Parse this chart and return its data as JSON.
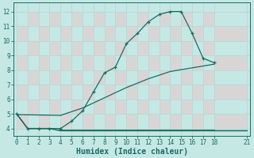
{
  "xlabel": "Humidex (Indice chaleur)",
  "bg_color": "#c5e8e5",
  "grid_color": "#b8d8d4",
  "cell_bg": "#e8c8c8",
  "line_color": "#1a6b60",
  "line1_x": [
    0,
    1,
    2,
    3,
    4,
    5,
    6,
    7,
    8,
    9,
    10,
    11,
    12,
    13,
    14,
    15,
    16,
    17,
    18
  ],
  "line1_y": [
    5.0,
    4.0,
    4.0,
    4.0,
    4.0,
    4.5,
    5.2,
    6.5,
    7.8,
    8.2,
    9.8,
    10.5,
    11.3,
    11.8,
    12.0,
    12.0,
    10.5,
    8.8,
    8.5
  ],
  "line2_x": [
    0,
    1,
    2,
    3,
    4,
    18,
    21
  ],
  "line2_y": [
    5.0,
    4.0,
    4.0,
    4.0,
    3.85,
    3.85,
    3.85
  ],
  "line3_x": [
    4,
    18
  ],
  "line3_y": [
    3.85,
    3.85
  ],
  "line4_x": [
    0,
    4,
    6,
    8,
    10,
    12,
    14,
    16,
    18
  ],
  "line4_y": [
    4.95,
    4.9,
    5.4,
    6.1,
    6.8,
    7.4,
    7.9,
    8.15,
    8.4
  ],
  "xlim": [
    -0.3,
    21.3
  ],
  "ylim": [
    3.5,
    12.6
  ],
  "xticks": [
    0,
    1,
    2,
    3,
    4,
    5,
    6,
    7,
    8,
    9,
    10,
    11,
    12,
    13,
    14,
    15,
    16,
    17,
    18,
    21
  ],
  "yticks": [
    4,
    5,
    6,
    7,
    8,
    9,
    10,
    11,
    12
  ],
  "tick_fontsize": 5.5,
  "xlabel_fontsize": 7.0
}
